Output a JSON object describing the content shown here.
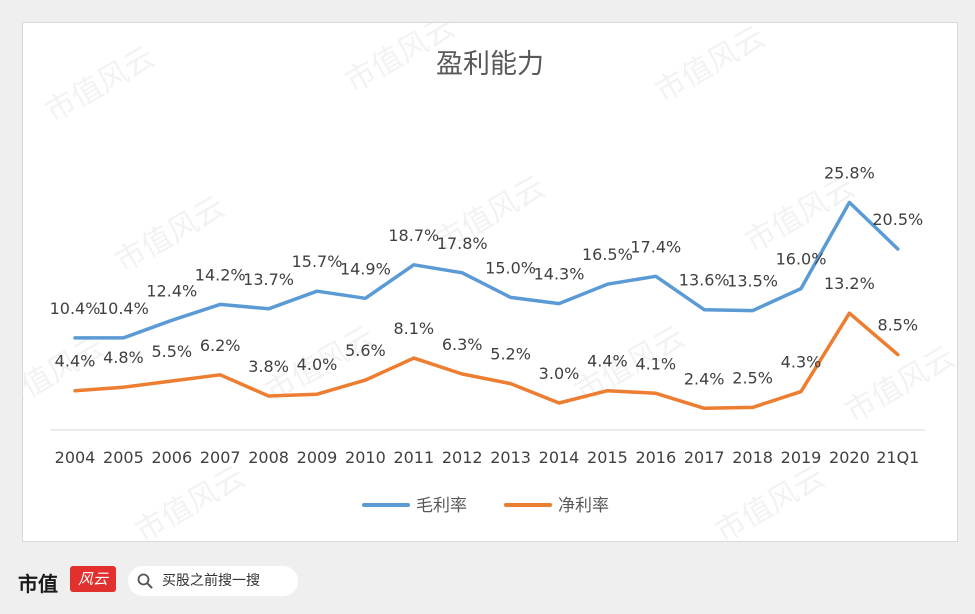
{
  "chart_data": {
    "type": "line",
    "title": "盈利能力",
    "categories": [
      "2004",
      "2005",
      "2006",
      "2007",
      "2008",
      "2009",
      "2010",
      "2011",
      "2012",
      "2013",
      "2014",
      "2015",
      "2016",
      "2017",
      "2018",
      "2019",
      "2020",
      "21Q1"
    ],
    "series": [
      {
        "name": "毛利率",
        "color": "#5b9bd5",
        "values": [
          10.4,
          10.4,
          12.4,
          14.2,
          13.7,
          15.7,
          14.9,
          18.7,
          17.8,
          15.0,
          14.3,
          16.5,
          17.4,
          13.6,
          13.5,
          16.0,
          25.8,
          20.5
        ],
        "labels": [
          "10.4%",
          "10.4%",
          "12.4%",
          "14.2%",
          "13.7%",
          "15.7%",
          "14.9%",
          "18.7%",
          "17.8%",
          "15.0%",
          "14.3%",
          "16.5%",
          "17.4%",
          "13.6%",
          "13.5%",
          "16.0%",
          "25.8%",
          "20.5%"
        ]
      },
      {
        "name": "净利率",
        "color": "#ed7d31",
        "values": [
          4.4,
          4.8,
          5.5,
          6.2,
          3.8,
          4.0,
          5.6,
          8.1,
          6.3,
          5.2,
          3.0,
          4.4,
          4.1,
          2.4,
          2.5,
          4.3,
          13.2,
          8.5
        ],
        "labels": [
          "4.4%",
          "4.8%",
          "5.5%",
          "6.2%",
          "3.8%",
          "4.0%",
          "5.6%",
          "8.1%",
          "6.3%",
          "5.2%",
          "3.0%",
          "4.4%",
          "4.1%",
          "2.4%",
          "2.5%",
          "4.3%",
          "13.2%",
          "8.5%"
        ]
      }
    ],
    "legend_position": "bottom",
    "grid": false
  },
  "footer": {
    "brand": "市值",
    "badge": "风云",
    "search_placeholder": "买股之前搜一搜"
  },
  "watermark": "市值风云"
}
